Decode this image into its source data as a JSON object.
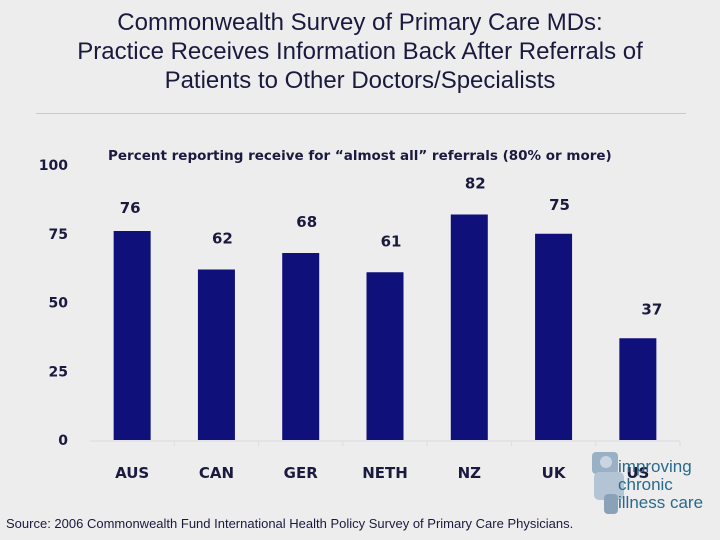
{
  "slide": {
    "title_lines": [
      "Commonwealth Survey of Primary Care MDs:",
      "Practice Receives Information Back After Referrals of",
      "Patients to Other Doctors/Specialists"
    ],
    "source": "Source: 2006 Commonwealth Fund International Health Policy Survey of Primary Care Physicians.",
    "logo": {
      "icon": "puzzle-person-icon",
      "lines": [
        "improving",
        "chronic",
        "illness care"
      ]
    }
  },
  "chart_data": {
    "type": "bar",
    "title": "Percent reporting receive for “almost all” referrals (80% or more)",
    "categories": [
      "AUS",
      "CAN",
      "GER",
      "NETH",
      "NZ",
      "UK",
      "US"
    ],
    "values": [
      76,
      62,
      68,
      61,
      82,
      75,
      37
    ],
    "ylim": [
      0,
      100
    ],
    "yticks": [
      "0",
      "25",
      "50",
      "75",
      "100"
    ],
    "xlabel": "",
    "ylabel": "",
    "grid": false,
    "bar_color": "#10107a"
  }
}
